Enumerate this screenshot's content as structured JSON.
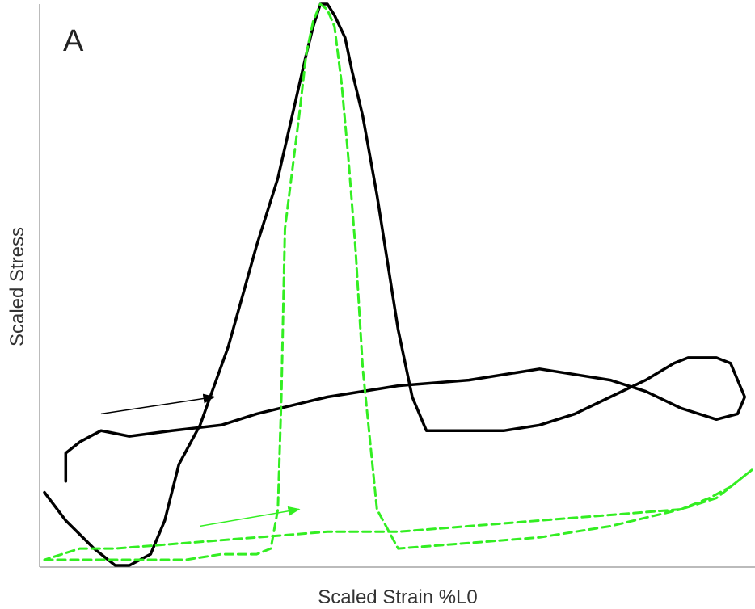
{
  "panel_label": "A",
  "chart_data": {
    "type": "line",
    "title": "",
    "xlabel": "Scaled Strain %L0",
    "ylabel": "Scaled Stress",
    "xlim": [
      0,
      1
    ],
    "ylim": [
      0,
      1
    ],
    "grid": false,
    "tick_labels": false,
    "colors": {
      "series_black": "#000000",
      "series_green": "#33ee22",
      "axis": "#bbbbbb"
    },
    "series": [
      {
        "color": "#000000",
        "style": "solid",
        "x": [
          0.0,
          0.03,
          0.07,
          0.1,
          0.12,
          0.15,
          0.17,
          0.19,
          0.22,
          0.26,
          0.3,
          0.33,
          0.35,
          0.37,
          0.38,
          0.39,
          0.4,
          0.41,
          0.425,
          0.435,
          0.45,
          0.47,
          0.5,
          0.52,
          0.54,
          0.56,
          0.6,
          0.65,
          0.7,
          0.75,
          0.8,
          0.85,
          0.89,
          0.91,
          0.93,
          0.95,
          0.97,
          0.99,
          0.98,
          0.95,
          0.9,
          0.85,
          0.8,
          0.75,
          0.7,
          0.6,
          0.5,
          0.4,
          0.3,
          0.25,
          0.18,
          0.12,
          0.08,
          0.05,
          0.03,
          0.03
        ],
        "y": [
          0.13,
          0.08,
          0.03,
          0.0,
          0.0,
          0.02,
          0.08,
          0.18,
          0.25,
          0.39,
          0.57,
          0.69,
          0.8,
          0.91,
          0.96,
          1.0,
          1.0,
          0.98,
          0.94,
          0.88,
          0.8,
          0.66,
          0.42,
          0.3,
          0.24,
          0.24,
          0.24,
          0.24,
          0.25,
          0.27,
          0.3,
          0.33,
          0.36,
          0.37,
          0.37,
          0.37,
          0.36,
          0.3,
          0.27,
          0.26,
          0.28,
          0.31,
          0.33,
          0.34,
          0.35,
          0.33,
          0.32,
          0.3,
          0.27,
          0.25,
          0.24,
          0.23,
          0.24,
          0.22,
          0.2,
          0.15
        ]
      },
      {
        "color": "#33ee22",
        "style": "dashed",
        "x": [
          0.0,
          0.02,
          0.06,
          0.1,
          0.15,
          0.2,
          0.25,
          0.3,
          0.32,
          0.33,
          0.335,
          0.34,
          0.36,
          0.37,
          0.38,
          0.39,
          0.4,
          0.41,
          0.42,
          0.43,
          0.44,
          0.45,
          0.47,
          0.5,
          0.6,
          0.7,
          0.8,
          0.9,
          0.94,
          0.97,
          1.0,
          0.95,
          0.9,
          0.8,
          0.7,
          0.6,
          0.5,
          0.4,
          0.3,
          0.2,
          0.1,
          0.05,
          0.0
        ],
        "y": [
          0.01,
          0.01,
          0.01,
          0.01,
          0.01,
          0.01,
          0.02,
          0.02,
          0.03,
          0.1,
          0.3,
          0.6,
          0.8,
          0.91,
          0.97,
          1.0,
          0.99,
          0.96,
          0.86,
          0.72,
          0.56,
          0.35,
          0.1,
          0.03,
          0.04,
          0.05,
          0.07,
          0.1,
          0.12,
          0.14,
          0.17,
          0.12,
          0.1,
          0.09,
          0.08,
          0.07,
          0.06,
          0.06,
          0.05,
          0.04,
          0.03,
          0.03,
          0.01
        ]
      }
    ],
    "annotations": [
      {
        "type": "arrow",
        "color": "#000000",
        "x": [
          0.08,
          0.24
        ],
        "y": [
          0.27,
          0.3
        ]
      },
      {
        "type": "arrow",
        "color": "#33ee22",
        "x": [
          0.22,
          0.36
        ],
        "y": [
          0.07,
          0.1
        ]
      }
    ]
  }
}
